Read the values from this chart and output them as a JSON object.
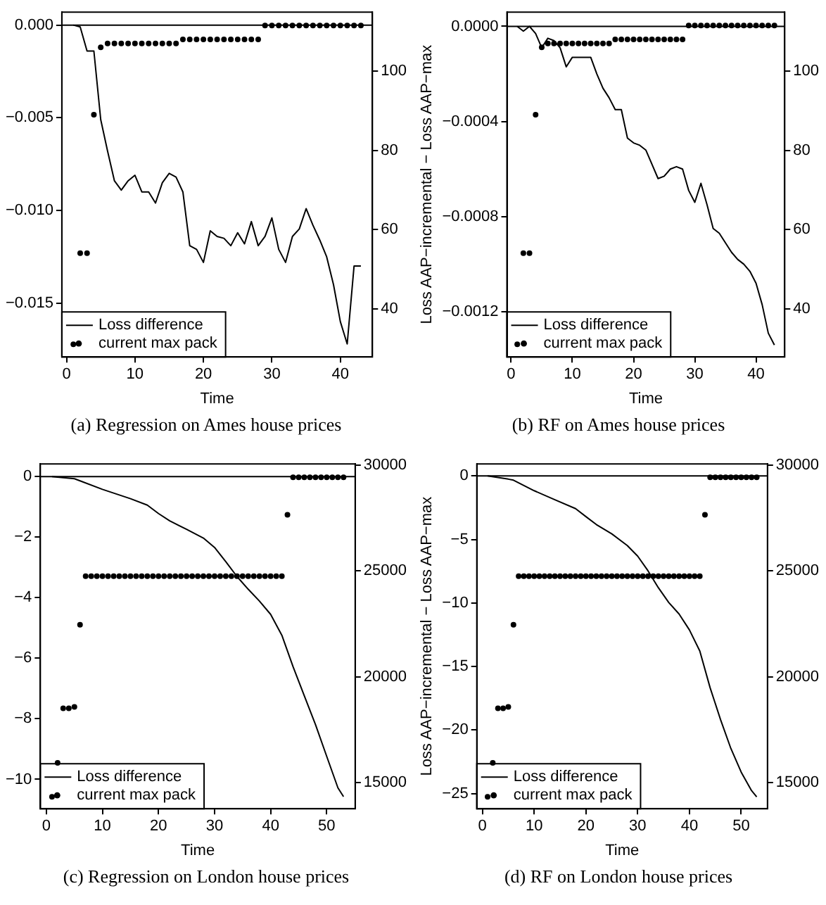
{
  "chart_data": [
    {
      "type": "line",
      "title": "(a) Regression on Ames house prices",
      "xlabel": "Time",
      "xlim": [
        -0.68,
        44.68
      ],
      "xticks": [
        0,
        10,
        20,
        30,
        40
      ],
      "ylim": [
        -0.0179,
        0.0007
      ],
      "yticks": [
        {
          "value": -0.015,
          "label": "−0.015"
        },
        {
          "value": -0.01,
          "label": "−0.010"
        },
        {
          "value": -0.005,
          "label": "−0.005"
        },
        {
          "value": 0,
          "label": "0.000"
        }
      ],
      "y2lim": [
        27.8,
        114.9
      ],
      "y2ticks": [
        40,
        60,
        80,
        100
      ],
      "legend": "bottom left",
      "ref_lines": [
        {
          "axis": "y",
          "value": 0,
          "color": "#000000"
        }
      ],
      "series": [
        {
          "name": "Loss difference",
          "type": "line",
          "color": "#000000",
          "marker": "none",
          "x": [
            1,
            2,
            3,
            4,
            5,
            6,
            7,
            8,
            9,
            10,
            11,
            12,
            13,
            14,
            15,
            16,
            17,
            18,
            19,
            20,
            21,
            22,
            23,
            24,
            25,
            26,
            27,
            28,
            29,
            30,
            31,
            32,
            33,
            34,
            35,
            36,
            37,
            38,
            39,
            40,
            41,
            42,
            43
          ],
          "values": [
            0,
            -0.0001,
            -0.0014,
            -0.0014,
            -0.0051,
            -0.0068,
            -0.0084,
            -0.0089,
            -0.0084,
            -0.0081,
            -0.009,
            -0.009,
            -0.0096,
            -0.0085,
            -0.008,
            -0.0082,
            -0.009,
            -0.0119,
            -0.0121,
            -0.0128,
            -0.0111,
            -0.0114,
            -0.0115,
            -0.0119,
            -0.0112,
            -0.0118,
            -0.0106,
            -0.0119,
            -0.0114,
            -0.0104,
            -0.0121,
            -0.0128,
            -0.0114,
            -0.011,
            -0.0099,
            -0.0108,
            -0.0116,
            -0.0125,
            -0.014,
            -0.016,
            -0.0172,
            -0.013,
            -0.013
          ]
        },
        {
          "name": "current max pack",
          "type": "scatter",
          "axis": "y2",
          "color": "#000000",
          "marker": "circle",
          "x": [
            1,
            2,
            3,
            4,
            5,
            6,
            7,
            8,
            9,
            10,
            11,
            12,
            13,
            14,
            15,
            16,
            17,
            18,
            19,
            20,
            21,
            22,
            23,
            24,
            25,
            26,
            27,
            28,
            29,
            30,
            31,
            32,
            33,
            34,
            35,
            36,
            37,
            38,
            39,
            40,
            41,
            42,
            43
          ],
          "values": [
            31,
            54,
            54,
            89,
            106,
            107,
            107,
            107,
            107,
            107,
            107,
            107,
            107,
            107,
            107,
            107,
            108,
            108,
            108,
            108,
            108,
            108,
            108,
            108,
            108,
            108,
            108,
            108,
            111.5,
            111.5,
            111.5,
            111.5,
            111.5,
            111.5,
            111.5,
            111.5,
            111.5,
            111.5,
            111.5,
            111.5,
            111.5,
            111.5,
            111.5
          ]
        }
      ]
    },
    {
      "type": "line",
      "title": "(b) RF on Ames house prices",
      "xlabel": "Time",
      "ylabel": "Loss AAP−incremental − Loss AAP−max",
      "xlim": [
        -0.68,
        44.68
      ],
      "xticks": [
        0,
        10,
        20,
        30,
        40
      ],
      "ylim": [
        -0.00139,
        6e-05
      ],
      "yticks": [
        {
          "value": -0.0012,
          "label": "−0.0012"
        },
        {
          "value": -0.0008,
          "label": "−0.0008"
        },
        {
          "value": -0.0004,
          "label": "−0.0004"
        },
        {
          "value": 0,
          "label": "0.0000"
        }
      ],
      "y2lim": [
        27.8,
        114.9
      ],
      "y2ticks": [
        40,
        60,
        80,
        100
      ],
      "legend": "bottom left",
      "ref_lines": [
        {
          "axis": "y",
          "value": 0,
          "color": "#000000"
        }
      ],
      "series": [
        {
          "name": "Loss difference",
          "type": "line",
          "color": "#000000",
          "marker": "none",
          "x": [
            1,
            2,
            3,
            4,
            5,
            6,
            7,
            8,
            9,
            10,
            11,
            12,
            13,
            14,
            15,
            16,
            17,
            18,
            19,
            20,
            21,
            22,
            23,
            24,
            25,
            26,
            27,
            28,
            29,
            30,
            31,
            32,
            33,
            34,
            35,
            36,
            37,
            38,
            39,
            40,
            41,
            42,
            43
          ],
          "values": [
            0,
            -2e-05,
            0,
            -3e-05,
            -9e-05,
            -5e-05,
            -6e-05,
            -9e-05,
            -0.00017,
            -0.00013,
            -0.00013,
            -0.00013,
            -0.00013,
            -0.0002,
            -0.00026,
            -0.0003,
            -0.00035,
            -0.00035,
            -0.00047,
            -0.00049,
            -0.0005,
            -0.00052,
            -0.00058,
            -0.00064,
            -0.00063,
            -0.0006,
            -0.00059,
            -0.0006,
            -0.00069,
            -0.00074,
            -0.00066,
            -0.00075,
            -0.00085,
            -0.00087,
            -0.00091,
            -0.00095,
            -0.00098,
            -0.001,
            -0.00103,
            -0.00108,
            -0.00117,
            -0.00129,
            -0.00134
          ]
        },
        {
          "name": "current max pack",
          "type": "scatter",
          "axis": "y2",
          "color": "#000000",
          "marker": "circle",
          "x": [
            1,
            2,
            3,
            4,
            5,
            6,
            7,
            8,
            9,
            10,
            11,
            12,
            13,
            14,
            15,
            16,
            17,
            18,
            19,
            20,
            21,
            22,
            23,
            24,
            25,
            26,
            27,
            28,
            29,
            30,
            31,
            32,
            33,
            34,
            35,
            36,
            37,
            38,
            39,
            40,
            41,
            42,
            43
          ],
          "values": [
            31,
            54,
            54,
            89,
            106,
            107,
            107,
            107,
            107,
            107,
            107,
            107,
            107,
            107,
            107,
            107,
            108,
            108,
            108,
            108,
            108,
            108,
            108,
            108,
            108,
            108,
            108,
            108,
            111.5,
            111.5,
            111.5,
            111.5,
            111.5,
            111.5,
            111.5,
            111.5,
            111.5,
            111.5,
            111.5,
            111.5,
            111.5,
            111.5,
            111.5
          ]
        }
      ]
    },
    {
      "type": "line",
      "title": "(c) Regression on London house prices",
      "xlabel": "Time",
      "xlim": [
        -1.08,
        55.08
      ],
      "xticks": [
        0,
        10,
        20,
        30,
        40,
        50
      ],
      "ylim": [
        -10.97,
        0.42
      ],
      "yticks": [
        {
          "value": -10,
          "label": "−10"
        },
        {
          "value": -8,
          "label": "−8"
        },
        {
          "value": -6,
          "label": "−6"
        },
        {
          "value": -4,
          "label": "−4"
        },
        {
          "value": -2,
          "label": "−2"
        },
        0
      ],
      "y2lim": [
        13770,
        30050
      ],
      "y2ticks": [
        15000,
        20000,
        25000,
        30000
      ],
      "legend": "bottom left",
      "ref_lines": [
        {
          "axis": "y",
          "value": 0,
          "color": "#000000"
        }
      ],
      "series": [
        {
          "name": "Loss difference",
          "type": "line",
          "color": "#000000",
          "marker": "none",
          "x": [
            1,
            5,
            6,
            10,
            15,
            18,
            20,
            22,
            25,
            28,
            30,
            32,
            34,
            36,
            38,
            40,
            42,
            44,
            46,
            48,
            50,
            52,
            53
          ],
          "values": [
            0,
            -0.07,
            -0.14,
            -0.42,
            -0.73,
            -0.94,
            -1.22,
            -1.46,
            -1.74,
            -2.03,
            -2.34,
            -2.81,
            -3.3,
            -3.72,
            -4.11,
            -4.55,
            -5.24,
            -6.28,
            -7.24,
            -8.19,
            -9.24,
            -10.28,
            -10.57
          ]
        },
        {
          "name": "current max pack",
          "type": "scatter",
          "axis": "y2",
          "color": "#000000",
          "marker": "circle",
          "x": [
            1,
            2,
            3,
            4,
            5,
            6,
            7,
            8,
            9,
            10,
            11,
            12,
            13,
            14,
            15,
            16,
            17,
            18,
            19,
            20,
            21,
            22,
            23,
            24,
            25,
            26,
            27,
            28,
            29,
            30,
            31,
            32,
            33,
            34,
            35,
            36,
            37,
            38,
            39,
            40,
            41,
            42,
            43,
            44,
            45,
            46,
            47,
            48,
            49,
            50,
            51,
            52,
            53
          ],
          "values": [
            14330,
            15940,
            18510,
            18510,
            18580,
            22460,
            24750,
            24750,
            24750,
            24750,
            24750,
            24750,
            24750,
            24750,
            24750,
            24750,
            24750,
            24750,
            24750,
            24750,
            24750,
            24750,
            24750,
            24750,
            24750,
            24750,
            24750,
            24750,
            24750,
            24750,
            24750,
            24750,
            24750,
            24750,
            24750,
            24750,
            24750,
            24750,
            24750,
            24750,
            24750,
            24750,
            27650,
            29420,
            29420,
            29420,
            29420,
            29420,
            29420,
            29420,
            29420,
            29420,
            29420
          ]
        }
      ]
    },
    {
      "type": "line",
      "title": "(d) RF on London house prices",
      "xlabel": "Time",
      "ylabel": "Loss AAP−incremental − Loss AAP−max",
      "xlim": [
        -1.08,
        55.08
      ],
      "xticks": [
        0,
        10,
        20,
        30,
        40,
        50
      ],
      "ylim": [
        -26.2,
        0.95
      ],
      "yticks": [
        {
          "value": -25,
          "label": "−25"
        },
        {
          "value": -20,
          "label": "−20"
        },
        {
          "value": -15,
          "label": "−15"
        },
        {
          "value": -10,
          "label": "−10"
        },
        {
          "value": -5,
          "label": "−5"
        },
        0
      ],
      "y2lim": [
        13770,
        30050
      ],
      "y2ticks": [
        15000,
        20000,
        25000,
        30000
      ],
      "legend": "bottom left",
      "ref_lines": [
        {
          "axis": "y",
          "value": 0,
          "color": "#000000"
        }
      ],
      "series": [
        {
          "name": "Loss difference",
          "type": "line",
          "color": "#000000",
          "marker": "none",
          "x": [
            1,
            5,
            6,
            10,
            14,
            18,
            20,
            22,
            25,
            28,
            30,
            32,
            34,
            36,
            38,
            40,
            42,
            44,
            46,
            48,
            50,
            52,
            53
          ],
          "values": [
            0,
            -0.25,
            -0.33,
            -1.16,
            -1.87,
            -2.57,
            -3.2,
            -3.82,
            -4.56,
            -5.48,
            -6.31,
            -7.47,
            -8.8,
            -9.96,
            -10.87,
            -12.12,
            -13.78,
            -16.68,
            -19.17,
            -21.45,
            -23.32,
            -24.77,
            -25.27
          ]
        },
        {
          "name": "current max pack",
          "type": "scatter",
          "axis": "y2",
          "color": "#000000",
          "marker": "circle",
          "x": [
            1,
            2,
            3,
            4,
            5,
            6,
            7,
            8,
            9,
            10,
            11,
            12,
            13,
            14,
            15,
            16,
            17,
            18,
            19,
            20,
            21,
            22,
            23,
            24,
            25,
            26,
            27,
            28,
            29,
            30,
            31,
            32,
            33,
            34,
            35,
            36,
            37,
            38,
            39,
            40,
            41,
            42,
            43,
            44,
            45,
            46,
            47,
            48,
            49,
            50,
            51,
            52,
            53
          ],
          "values": [
            14330,
            15940,
            18510,
            18510,
            18580,
            22460,
            24750,
            24750,
            24750,
            24750,
            24750,
            24750,
            24750,
            24750,
            24750,
            24750,
            24750,
            24750,
            24750,
            24750,
            24750,
            24750,
            24750,
            24750,
            24750,
            24750,
            24750,
            24750,
            24750,
            24750,
            24750,
            24750,
            24750,
            24750,
            24750,
            24750,
            24750,
            24750,
            24750,
            24750,
            24750,
            24750,
            27650,
            29420,
            29420,
            29420,
            29420,
            29420,
            29420,
            29420,
            29420,
            29420,
            29420
          ]
        }
      ]
    }
  ]
}
